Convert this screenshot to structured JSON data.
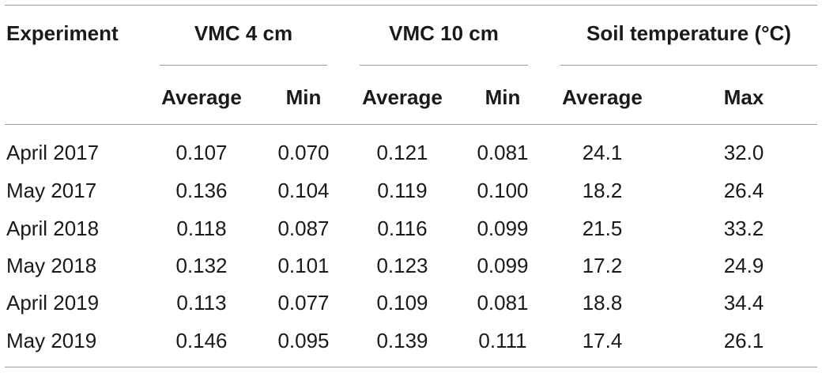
{
  "table": {
    "header": {
      "experiment": "Experiment",
      "groups": [
        "VMC 4 cm",
        "VMC 10 cm",
        "Soil temperature (°C)"
      ],
      "subheaders": [
        "Average",
        "Min",
        "Average",
        "Min",
        "Average",
        "Max"
      ]
    },
    "rows": [
      {
        "experiment": "April 2017",
        "values": [
          "0.107",
          "0.070",
          "0.121",
          "0.081",
          "24.1",
          "32.0"
        ]
      },
      {
        "experiment": "May 2017",
        "values": [
          "0.136",
          "0.104",
          "0.119",
          "0.100",
          "18.2",
          "26.4"
        ]
      },
      {
        "experiment": "April 2018",
        "values": [
          "0.118",
          "0.087",
          "0.116",
          "0.099",
          "21.5",
          "33.2"
        ]
      },
      {
        "experiment": "May 2018",
        "values": [
          "0.132",
          "0.101",
          "0.123",
          "0.099",
          "17.2",
          "24.9"
        ]
      },
      {
        "experiment": "April 2019",
        "values": [
          "0.113",
          "0.077",
          "0.109",
          "0.081",
          "18.8",
          "34.4"
        ]
      },
      {
        "experiment": "May 2019",
        "values": [
          "0.146",
          "0.095",
          "0.139",
          "0.111",
          "17.4",
          "26.1"
        ]
      }
    ]
  }
}
